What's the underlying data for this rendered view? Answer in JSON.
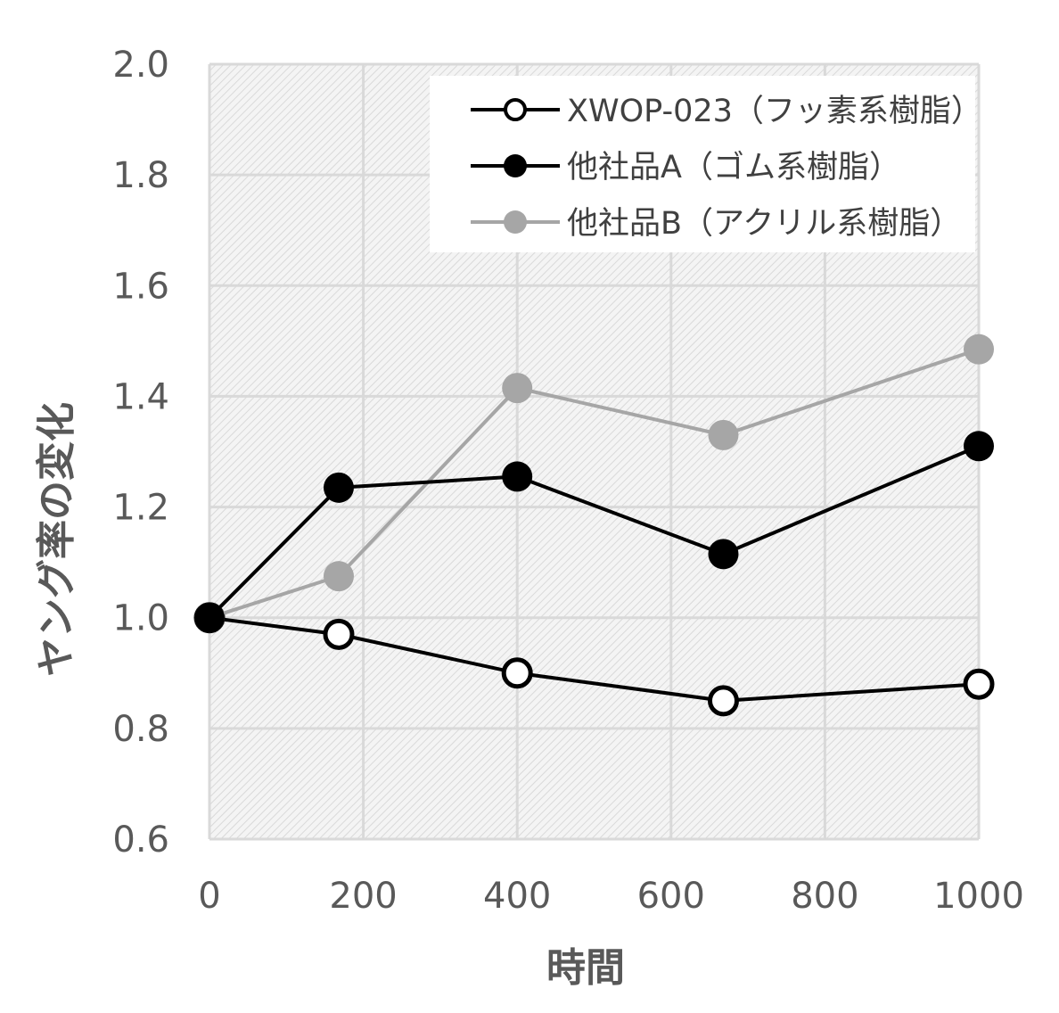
{
  "chart_data": {
    "type": "line",
    "title": "",
    "xlabel": "時間",
    "ylabel": "ヤング率の変化",
    "xlim": [
      0,
      1000
    ],
    "ylim": [
      0.6,
      2.0
    ],
    "x_ticks": [
      "0",
      "200",
      "400",
      "600",
      "800",
      "1000"
    ],
    "y_ticks": [
      "0.6",
      "0.8",
      "1.0",
      "1.2",
      "1.4",
      "1.6",
      "1.8",
      "2.0"
    ],
    "grid": true,
    "legend_position": "top-right",
    "series": [
      {
        "name": "XWOP-023（フッ素系樹脂）",
        "color": "#000000",
        "marker": "open-circle",
        "x": [
          0,
          168,
          400,
          668,
          1000
        ],
        "values": [
          1.0,
          0.97,
          0.9,
          0.85,
          0.88
        ]
      },
      {
        "name": "他社品A（ゴム系樹脂）",
        "color": "#000000",
        "marker": "filled-circle",
        "x": [
          0,
          168,
          400,
          668,
          1000
        ],
        "values": [
          1.0,
          1.235,
          1.255,
          1.115,
          1.31
        ]
      },
      {
        "name": "他社品B（アクリル系樹脂）",
        "color": "#a6a6a6",
        "marker": "filled-circle",
        "x": [
          0,
          168,
          400,
          668,
          1000
        ],
        "values": [
          1.0,
          1.075,
          1.415,
          1.33,
          1.485
        ]
      }
    ]
  }
}
